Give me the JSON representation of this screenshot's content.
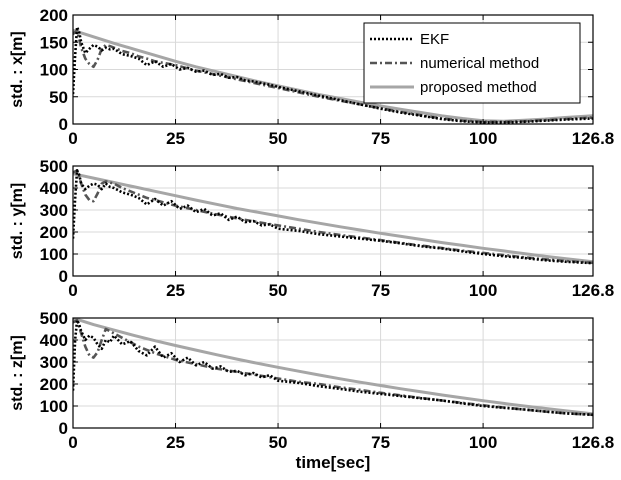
{
  "chart_data": [
    {
      "type": "line",
      "ylabel": "std. : x[m]",
      "xlabel": "",
      "xlim": [
        0,
        126.8
      ],
      "ylim": [
        0,
        200
      ],
      "xticks": [
        0,
        25,
        50,
        75,
        100,
        126.8
      ],
      "xtick_labels": [
        "0",
        "25",
        "50",
        "75",
        "100",
        "126.8"
      ],
      "yticks": [
        0,
        50,
        100,
        150,
        200
      ],
      "ytick_labels": [
        "0",
        "50",
        "100",
        "150",
        "200"
      ],
      "grid": true,
      "legend": {
        "placement": "top-right",
        "entries": [
          "EKF",
          "numerical method",
          "proposed method"
        ]
      },
      "series": [
        {
          "name": "EKF",
          "style": "dotted",
          "color": "#000000",
          "x": [
            0,
            0.5,
            1,
            1.5,
            2,
            3,
            4,
            5,
            6,
            7,
            8,
            9,
            10,
            12,
            14,
            16,
            18,
            20,
            22,
            24,
            26,
            28,
            30,
            32,
            34,
            36,
            38,
            40,
            42,
            44,
            46,
            48,
            50,
            55,
            60,
            65,
            70,
            75,
            80,
            85,
            90,
            95,
            100,
            105,
            110,
            115,
            120,
            126.8
          ],
          "y": [
            55,
            125,
            178,
            168,
            150,
            130,
            138,
            145,
            142,
            135,
            140,
            137,
            138,
            128,
            125,
            120,
            108,
            115,
            105,
            110,
            100,
            103,
            96,
            98,
            90,
            92,
            85,
            86,
            80,
            78,
            75,
            72,
            68,
            60,
            52,
            44,
            36,
            28,
            21,
            15,
            9,
            5,
            3,
            3,
            4,
            6,
            8,
            10
          ]
        },
        {
          "name": "numerical method",
          "style": "dash-dot",
          "color": "#555555",
          "x": [
            0,
            1,
            2,
            3,
            4,
            5,
            6,
            7,
            8,
            9,
            10,
            12,
            14,
            16,
            18,
            20,
            25,
            30,
            35,
            40,
            45,
            50,
            55,
            60,
            65,
            70,
            75,
            80,
            85,
            90,
            95,
            100,
            105,
            110,
            115,
            120,
            126.8
          ],
          "y": [
            165,
            172,
            140,
            120,
            110,
            105,
            118,
            138,
            145,
            143,
            140,
            134,
            130,
            124,
            120,
            115,
            108,
            98,
            90,
            82,
            74,
            66,
            58,
            50,
            43,
            36,
            29,
            22,
            16,
            10,
            6,
            4,
            4,
            5,
            7,
            9,
            12
          ]
        },
        {
          "name": "proposed method",
          "style": "solid",
          "color": "#a6a6a6",
          "x": [
            0,
            5,
            10,
            15,
            20,
            25,
            30,
            35,
            40,
            45,
            50,
            55,
            60,
            65,
            70,
            75,
            80,
            85,
            90,
            95,
            100,
            105,
            110,
            115,
            120,
            126.8
          ],
          "y": [
            172,
            160,
            148,
            137,
            126,
            115,
            105,
            96,
            87,
            78,
            70,
            62,
            54,
            47,
            40,
            33,
            27,
            21,
            15,
            10,
            6,
            5,
            7,
            9,
            12,
            15
          ]
        }
      ]
    },
    {
      "type": "line",
      "ylabel": "std. : y[m]",
      "xlabel": "",
      "xlim": [
        0,
        126.8
      ],
      "ylim": [
        0,
        500
      ],
      "xticks": [
        0,
        25,
        50,
        75,
        100,
        126.8
      ],
      "xtick_labels": [
        "0",
        "25",
        "50",
        "75",
        "100",
        "126.8"
      ],
      "yticks": [
        0,
        100,
        200,
        300,
        400,
        500
      ],
      "ytick_labels": [
        "0",
        "100",
        "200",
        "300",
        "400",
        "500"
      ],
      "grid": true,
      "series": [
        {
          "name": "EKF",
          "style": "dotted",
          "color": "#000000",
          "x": [
            0,
            0.5,
            1,
            1.5,
            2,
            3,
            4,
            5,
            6,
            7,
            8,
            9,
            10,
            12,
            14,
            16,
            18,
            20,
            22,
            24,
            26,
            28,
            30,
            32,
            34,
            36,
            38,
            40,
            42,
            44,
            46,
            48,
            50,
            55,
            60,
            65,
            70,
            75,
            80,
            85,
            90,
            95,
            100,
            105,
            110,
            115,
            120,
            126.8
          ],
          "y": [
            170,
            350,
            480,
            460,
            420,
            395,
            410,
            420,
            415,
            395,
            420,
            405,
            400,
            380,
            370,
            355,
            325,
            350,
            320,
            340,
            305,
            320,
            290,
            305,
            275,
            285,
            255,
            270,
            245,
            250,
            230,
            235,
            215,
            205,
            190,
            180,
            170,
            160,
            148,
            135,
            125,
            112,
            100,
            90,
            82,
            72,
            65,
            58
          ]
        },
        {
          "name": "numerical method",
          "style": "dash-dot",
          "color": "#555555",
          "x": [
            0,
            1,
            2,
            3,
            4,
            5,
            6,
            7,
            8,
            9,
            10,
            12,
            14,
            16,
            18,
            20,
            25,
            30,
            35,
            40,
            45,
            50,
            55,
            60,
            65,
            70,
            75,
            80,
            85,
            90,
            95,
            100,
            105,
            110,
            115,
            120,
            126.8
          ],
          "y": [
            470,
            480,
            420,
            370,
            345,
            340,
            375,
            420,
            430,
            425,
            420,
            400,
            385,
            370,
            355,
            345,
            320,
            300,
            280,
            262,
            245,
            230,
            215,
            200,
            187,
            175,
            163,
            150,
            138,
            127,
            115,
            105,
            95,
            85,
            76,
            68,
            60
          ]
        },
        {
          "name": "proposed method",
          "style": "solid",
          "color": "#a6a6a6",
          "x": [
            0,
            5,
            10,
            15,
            20,
            25,
            30,
            35,
            40,
            45,
            50,
            55,
            60,
            65,
            70,
            75,
            80,
            85,
            90,
            95,
            100,
            105,
            110,
            115,
            120,
            126.8
          ],
          "y": [
            465,
            445,
            425,
            405,
            385,
            365,
            345,
            326,
            307,
            290,
            273,
            256,
            240,
            224,
            209,
            194,
            180,
            166,
            152,
            139,
            126,
            114,
            102,
            90,
            79,
            65
          ]
        }
      ]
    },
    {
      "type": "line",
      "ylabel": "std. : z[m]",
      "xlabel": "time[sec]",
      "xlim": [
        0,
        126.8
      ],
      "ylim": [
        0,
        500
      ],
      "xticks": [
        0,
        25,
        50,
        75,
        100,
        126.8
      ],
      "xtick_labels": [
        "0",
        "25",
        "50",
        "75",
        "100",
        "126.8"
      ],
      "yticks": [
        0,
        100,
        200,
        300,
        400,
        500
      ],
      "ytick_labels": [
        "0",
        "100",
        "200",
        "300",
        "400",
        "500"
      ],
      "grid": true,
      "series": [
        {
          "name": "EKF",
          "style": "dotted",
          "color": "#000000",
          "x": [
            0,
            0.5,
            1,
            1.5,
            2,
            3,
            4,
            5,
            6,
            7,
            8,
            9,
            10,
            12,
            14,
            16,
            18,
            20,
            22,
            24,
            26,
            28,
            30,
            32,
            34,
            36,
            38,
            40,
            42,
            44,
            46,
            48,
            50,
            55,
            60,
            65,
            70,
            75,
            80,
            85,
            90,
            95,
            100,
            105,
            110,
            115,
            120,
            126.8
          ],
          "y": [
            170,
            400,
            490,
            470,
            440,
            400,
            420,
            410,
            380,
            360,
            400,
            390,
            420,
            380,
            395,
            350,
            330,
            370,
            320,
            340,
            300,
            320,
            285,
            300,
            270,
            280,
            255,
            260,
            240,
            250,
            230,
            240,
            215,
            205,
            190,
            178,
            165,
            155,
            145,
            135,
            125,
            112,
            100,
            92,
            84,
            75,
            67,
            60
          ]
        },
        {
          "name": "numerical method",
          "style": "dash-dot",
          "color": "#555555",
          "x": [
            0,
            1,
            2,
            3,
            4,
            5,
            6,
            7,
            8,
            9,
            10,
            12,
            14,
            16,
            18,
            20,
            25,
            30,
            35,
            40,
            45,
            50,
            55,
            60,
            65,
            70,
            75,
            80,
            85,
            90,
            95,
            100,
            105,
            110,
            115,
            120,
            126.8
          ],
          "y": [
            480,
            490,
            430,
            370,
            330,
            320,
            345,
            400,
            450,
            440,
            430,
            410,
            390,
            370,
            355,
            340,
            310,
            290,
            270,
            255,
            240,
            225,
            210,
            200,
            185,
            173,
            160,
            148,
            136,
            125,
            114,
            103,
            93,
            84,
            75,
            67,
            60
          ]
        },
        {
          "name": "proposed method",
          "style": "solid",
          "color": "#a6a6a6",
          "x": [
            0,
            5,
            10,
            15,
            20,
            25,
            30,
            35,
            40,
            45,
            50,
            55,
            60,
            65,
            70,
            75,
            80,
            85,
            90,
            95,
            100,
            105,
            110,
            115,
            120,
            126.8
          ],
          "y": [
            500,
            470,
            445,
            420,
            397,
            375,
            354,
            333,
            313,
            294,
            276,
            258,
            241,
            224,
            208,
            193,
            178,
            164,
            150,
            137,
            124,
            112,
            100,
            89,
            78,
            64
          ]
        }
      ]
    }
  ]
}
